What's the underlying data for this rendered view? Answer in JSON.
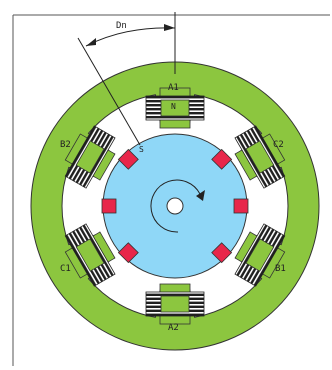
{
  "angle_label": "Dn",
  "poles": [
    {
      "id": "a1",
      "label": "A1"
    },
    {
      "id": "c2",
      "label": "C2"
    },
    {
      "id": "b1",
      "label": "B1"
    },
    {
      "id": "a2",
      "label": "A2"
    },
    {
      "id": "c1",
      "label": "C1"
    },
    {
      "id": "b2",
      "label": "B2"
    }
  ],
  "pole_north_label": "N",
  "rotor_south_label": "S",
  "colors": {
    "stator": "#8cc63f",
    "rotor": "#8fd7f7",
    "magnet": "#e8264a",
    "winding": "#222222",
    "outline": "#333333"
  }
}
